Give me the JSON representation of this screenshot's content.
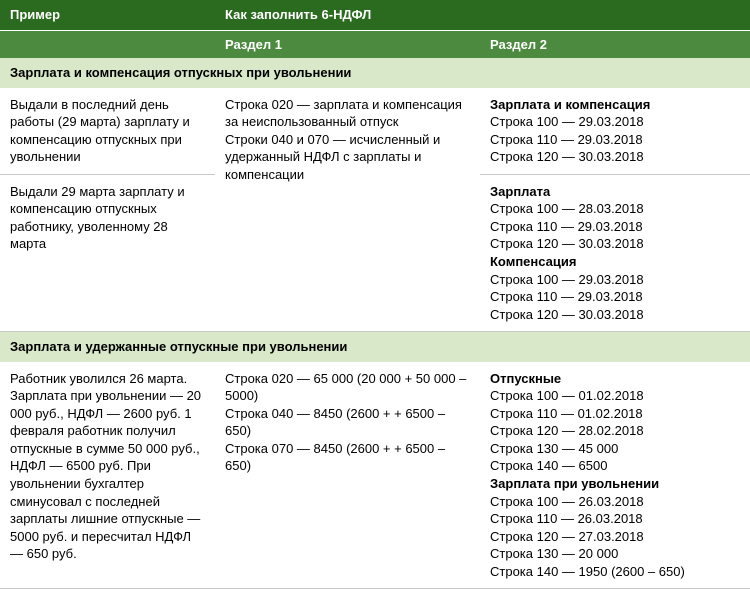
{
  "header": {
    "col1": "Пример",
    "col23": "Как заполнить 6-НДФЛ",
    "sub_col2": "Раздел 1",
    "sub_col3": "Раздел 2"
  },
  "sections": [
    {
      "title": "Зарплата и компенсация отпускных при увольнении",
      "rows": [
        {
          "col1": "Выдали в последний день работы (29 марта) зарпла­ту и компенсацию отпуск­ных при увольнении",
          "col2_rowspan": 2,
          "col2": "Строка 020 — зарплата и ком­пенсация за неиспользованный отпуск\nСтроки 040 и 070 — исчисленный и удержанный НДФЛ с зарплаты и компенсации",
          "col3": [
            {
              "t": "Зарплата и компенсация",
              "b": true
            },
            {
              "t": "Строка 100 — 29.03.2018"
            },
            {
              "t": "Строка 110 — 29.03.2018"
            },
            {
              "t": "Строка 120 — 30.03.2018"
            }
          ]
        },
        {
          "col1": "Выдали 29 марта зарплату и компенсацию отпускных работнику, уволенному 28 марта",
          "col3": [
            {
              "t": "Зарплата",
              "b": true
            },
            {
              "t": "Строка 100 — 28.03.2018"
            },
            {
              "t": "Строка 110 — 29.03.2018"
            },
            {
              "t": "Строка 120 — 30.03.2018"
            },
            {
              "t": "Компенсация",
              "b": true
            },
            {
              "t": "Строка 100 — 29.03.2018"
            },
            {
              "t": "Строка 110 — 29.03.2018"
            },
            {
              "t": "Строка 120 — 30.03.2018"
            }
          ]
        }
      ]
    },
    {
      "title": "Зарплата и удержанные отпускные при увольнении",
      "rows": [
        {
          "col1": "Работник уволился 26 мар­та. Зарплата при увольне­нии — 20 000 руб., НДФЛ — 2600 руб. 1 февраля работник по­лучил отпускные в сумме 50 000 руб., НДФЛ — 6500 руб. При увольнении бухгалтер сминусовал с последней зарплаты лишние отпускные — 5000 руб. и пересчитал НДФЛ — 650 руб.",
          "col2": "Строка 020 — 65 000 (20 000 + 50 000 – 5000)\nСтрока 040 — 8450 (2600 + + 6500 – 650)\nСтрока 070 — 8450 (2600 + + 6500 – 650)",
          "col3": [
            {
              "t": "Отпускные",
              "b": true
            },
            {
              "t": "Строка 100 — 01.02.2018"
            },
            {
              "t": "Строка 110 — 01.02.2018"
            },
            {
              "t": "Строка 120 — 28.02.2018"
            },
            {
              "t": "Строка 130 — 45 000"
            },
            {
              "t": "Строка 140 — 6500"
            },
            {
              "t": "Зарплата при увольнении",
              "b": true
            },
            {
              "t": "Строка 100 — 26.03.2018"
            },
            {
              "t": "Строка 110 — 26.03.2018"
            },
            {
              "t": "Строка 120 — 27.03.2018"
            },
            {
              "t": "Строка 130 — 20 000"
            },
            {
              "t": "Строка 140 — 1950 (2600 – 650)"
            }
          ]
        }
      ]
    }
  ]
}
